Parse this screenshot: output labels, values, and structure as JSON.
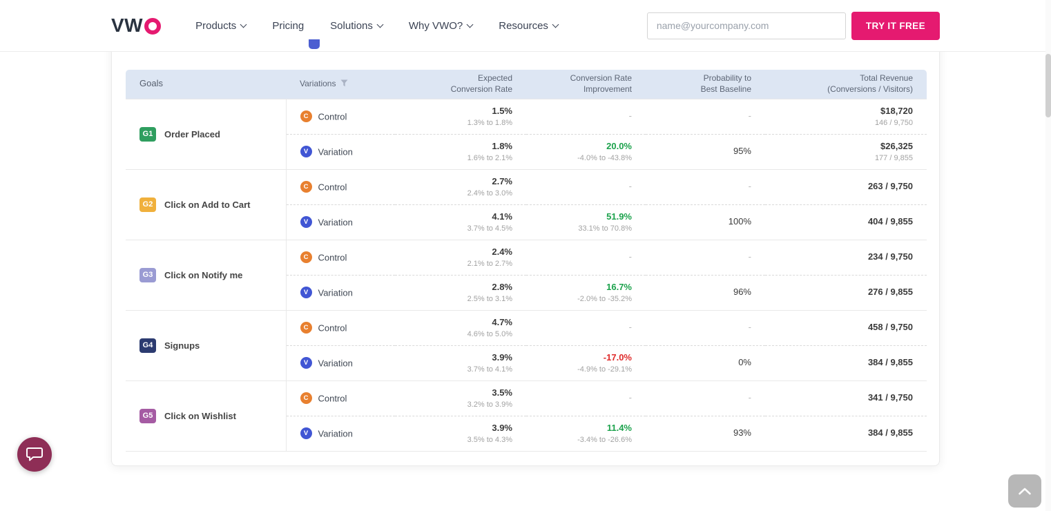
{
  "navbar": {
    "logo": "VWO",
    "logo_vw": "VW",
    "items": [
      {
        "label": "Products",
        "caret": true
      },
      {
        "label": "Pricing",
        "caret": false
      },
      {
        "label": "Solutions",
        "caret": true
      },
      {
        "label": "Why VWO?",
        "caret": true
      },
      {
        "label": "Resources",
        "caret": true
      }
    ],
    "email_placeholder": "name@yourcompany.com",
    "cta_label": "TRY IT FREE"
  },
  "table": {
    "headers": {
      "goals": "Goals",
      "variations": "Variations",
      "expected_line1": "Expected",
      "expected_line2": "Conversion Rate",
      "improvement_line1": "Conversion Rate",
      "improvement_line2": "Improvement",
      "probability_line1": "Probability to",
      "probability_line2": "Best Baseline",
      "revenue_line1": "Total Revenue",
      "revenue_line2": "(Conversions / Visitors)"
    },
    "goals": [
      {
        "id": "G1",
        "name": "Order Placed",
        "badge_color": "#2f9e5f",
        "rows": [
          {
            "type": "Control",
            "expected": "1.5%",
            "expected_range": "1.3% to 1.8%",
            "improvement": "-",
            "improvement_range": "",
            "improvement_color": "",
            "probability": "-",
            "revenue": "$18,720",
            "revenue_sub": "146 / 9,750"
          },
          {
            "type": "Variation",
            "expected": "1.8%",
            "expected_range": "1.6% to 2.1%",
            "improvement": "20.0%",
            "improvement_range": "-4.0% to -43.8%",
            "improvement_color": "green",
            "probability": "95%",
            "revenue": "$26,325",
            "revenue_sub": "177 / 9,855"
          }
        ]
      },
      {
        "id": "G2",
        "name": "Click on Add to Cart",
        "badge_color": "#f0b03c",
        "rows": [
          {
            "type": "Control",
            "expected": "2.7%",
            "expected_range": "2.4% to 3.0%",
            "improvement": "-",
            "improvement_range": "",
            "improvement_color": "",
            "probability": "-",
            "revenue": "263 / 9,750",
            "revenue_sub": ""
          },
          {
            "type": "Variation",
            "expected": "4.1%",
            "expected_range": "3.7% to 4.5%",
            "improvement": "51.9%",
            "improvement_range": "33.1% to 70.8%",
            "improvement_color": "green",
            "probability": "100%",
            "revenue": "404 / 9,855",
            "revenue_sub": ""
          }
        ]
      },
      {
        "id": "G3",
        "name": "Click on Notify me",
        "badge_color": "#9a9bd3",
        "rows": [
          {
            "type": "Control",
            "expected": "2.4%",
            "expected_range": "2.1% to 2.7%",
            "improvement": "-",
            "improvement_range": "",
            "improvement_color": "",
            "probability": "-",
            "revenue": "234 / 9,750",
            "revenue_sub": ""
          },
          {
            "type": "Variation",
            "expected": "2.8%",
            "expected_range": "2.5% to 3.1%",
            "improvement": "16.7%",
            "improvement_range": "-2.0% to -35.2%",
            "improvement_color": "green",
            "probability": "96%",
            "revenue": "276 / 9,855",
            "revenue_sub": ""
          }
        ]
      },
      {
        "id": "G4",
        "name": "Signups",
        "badge_color": "#2c3b70",
        "rows": [
          {
            "type": "Control",
            "expected": "4.7%",
            "expected_range": "4.6% to 5.0%",
            "improvement": "-",
            "improvement_range": "",
            "improvement_color": "",
            "probability": "-",
            "revenue": "458 / 9,750",
            "revenue_sub": ""
          },
          {
            "type": "Variation",
            "expected": "3.9%",
            "expected_range": "3.7% to 4.1%",
            "improvement": "-17.0%",
            "improvement_range": "-4.9% to -29.1%",
            "improvement_color": "red",
            "probability": "0%",
            "revenue": "384 / 9,855",
            "revenue_sub": ""
          }
        ]
      },
      {
        "id": "G5",
        "name": "Click on Wishlist",
        "badge_color": "#a55ba3",
        "rows": [
          {
            "type": "Control",
            "expected": "3.5%",
            "expected_range": "3.2% to 3.9%",
            "improvement": "-",
            "improvement_range": "",
            "improvement_color": "",
            "probability": "-",
            "revenue": "341 / 9,750",
            "revenue_sub": ""
          },
          {
            "type": "Variation",
            "expected": "3.9%",
            "expected_range": "3.5% to 4.3%",
            "improvement": "11.4%",
            "improvement_range": "-3.4% to -26.6%",
            "improvement_color": "green",
            "probability": "93%",
            "revenue": "384 / 9,855",
            "revenue_sub": ""
          }
        ]
      }
    ]
  },
  "colors": {
    "brand_pink": "#e51a70",
    "table_header_bg": "#dde6f3",
    "positive_green": "#1ca24c",
    "negative_red": "#df2b2b",
    "control_orange": "#e8802f",
    "variation_blue": "#4156d4",
    "chat_bubble": "#8e2e56"
  },
  "icons": {
    "filter": "funnel-icon",
    "nav_caret": "chevron-down-icon",
    "chat": "chat-bubble-icon",
    "scroll_top": "chevron-up-icon"
  }
}
